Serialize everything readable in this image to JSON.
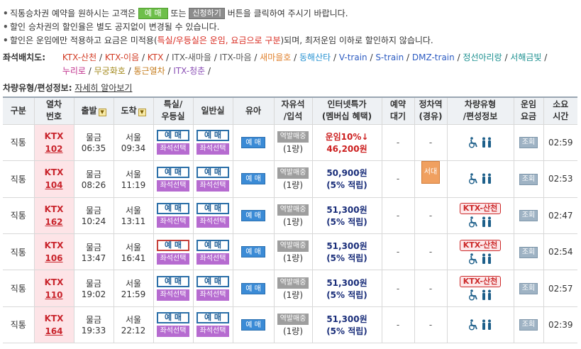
{
  "notice": {
    "line1_pre": "직통승차권 예약을 원하시는 고객은",
    "btn_reserve": "예 매",
    "line1_mid": "또는",
    "btn_apply": "신청하기",
    "line1_post": "버튼을 클릭하여 주시기 바랍니다.",
    "line2": "할인 승차권의 할인율은 별도 공지없이 변경될 수 있습니다.",
    "line3_pre": "할인은 운임에만 적용하고 요금은 미적용(",
    "line3_hl": "특실/우등실은 운임, 요금으로 구분",
    "line3_post": ")되며, 최저운임 이하로 할인하지 않습니다."
  },
  "seat_layout": {
    "label": "좌석배치도:",
    "row1": [
      {
        "text": "KTX-산천",
        "color": "#d23c25"
      },
      {
        "text": "KTX-이음",
        "color": "#d23c25"
      },
      {
        "text": "KTX",
        "color": "#d23c25"
      },
      {
        "text": "ITX-새마을",
        "color": "#555555"
      },
      {
        "text": "ITX-마음",
        "color": "#555555"
      },
      {
        "text": "새마을호",
        "color": "#e0822f"
      },
      {
        "text": "동해산타",
        "color": "#2692d2"
      },
      {
        "text": "V-train",
        "color": "#2d5cc2"
      },
      {
        "text": "S-train",
        "color": "#2d5cc2"
      },
      {
        "text": "DMZ-train",
        "color": "#2d5cc2"
      },
      {
        "text": "정선아리랑",
        "color": "#1a8f8f"
      },
      {
        "text": "서해금빛",
        "color": "#1a8f8f"
      }
    ],
    "row2": [
      {
        "text": "누리로",
        "color": "#c1328d"
      },
      {
        "text": "무궁화호",
        "color": "#a48a1e"
      },
      {
        "text": "통근열차",
        "color": "#c47a19"
      },
      {
        "text": "ITX-청춘",
        "color": "#8a4eb5"
      }
    ]
  },
  "vehicle_info": {
    "label": "차량유형/편성정보:",
    "link": "자세히 알아보기"
  },
  "table": {
    "headers": {
      "type": "구분",
      "train_no": "열차\n번호",
      "depart": "출발",
      "arrive": "도착",
      "special": "특실/\n우등실",
      "general": "일반실",
      "infant": "유아",
      "standing": "자유석\n/입석",
      "internet": "인터넷특가\n(멤버십 혜택)",
      "waitlist": "예약\n대기",
      "stop": "정차역\n(경유)",
      "vehicle": "차량유형\n/편성정보",
      "fare": "운임\n요금",
      "duration": "소요\n시간"
    },
    "labels": {
      "reserve": "예 매",
      "seat_select": "좌석선택",
      "infant": "예 매",
      "standing_btn": "역발매중",
      "standing_qty": "(1량)",
      "dash": "-",
      "view": "조회",
      "ktx_sancheon": "KTX-산천"
    },
    "rows": [
      {
        "type": "직통",
        "train": "KTX",
        "no": "102",
        "dep_st": "물금",
        "dep_time": "06:35",
        "arr_st": "서울",
        "arr_time": "09:34",
        "price_line1": "운임10%↓",
        "price_line2": "46,200원",
        "discount": true,
        "stop": "",
        "sancheon": false,
        "duration": "02:59"
      },
      {
        "type": "직통",
        "train": "KTX",
        "no": "104",
        "dep_st": "물금",
        "dep_time": "08:26",
        "arr_st": "서울",
        "arr_time": "11:19",
        "price_line1": "50,900원",
        "price_line2": "(5% 적립)",
        "discount": false,
        "stop": "서대구",
        "sancheon": false,
        "duration": "02:53"
      },
      {
        "type": "직통",
        "train": "KTX",
        "no": "162",
        "dep_st": "물금",
        "dep_time": "10:24",
        "arr_st": "서울",
        "arr_time": "13:11",
        "price_line1": "51,300원",
        "price_line2": "(5% 적립)",
        "discount": false,
        "stop": "",
        "sancheon": true,
        "duration": "02:47"
      },
      {
        "type": "직통",
        "train": "KTX",
        "no": "106",
        "dep_st": "물금",
        "dep_time": "13:47",
        "arr_st": "서울",
        "arr_time": "16:41",
        "price_line1": "51,300원",
        "price_line2": "(5% 적립)",
        "discount": false,
        "stop": "",
        "sancheon": true,
        "duration": "02:54"
      },
      {
        "type": "직통",
        "train": "KTX",
        "no": "110",
        "dep_st": "물금",
        "dep_time": "19:02",
        "arr_st": "서울",
        "arr_time": "21:59",
        "price_line1": "51,300원",
        "price_line2": "(5% 적립)",
        "discount": false,
        "stop": "",
        "sancheon": true,
        "duration": "02:57"
      },
      {
        "type": "직통",
        "train": "KTX",
        "no": "164",
        "dep_st": "물금",
        "dep_time": "19:33",
        "arr_st": "서울",
        "arr_time": "22:12",
        "price_line1": "51,300원",
        "price_line2": "(5% 적립)",
        "discount": false,
        "stop": "",
        "sancheon": false,
        "duration": "02:39"
      }
    ]
  }
}
